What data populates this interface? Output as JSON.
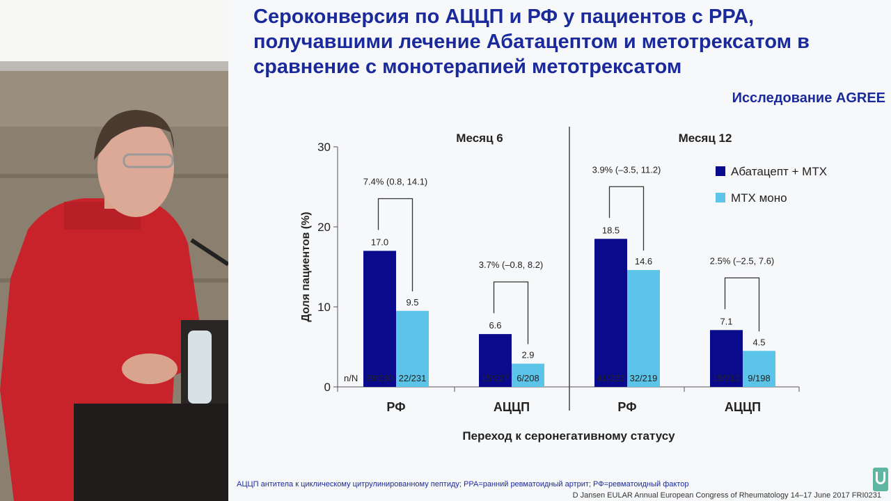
{
  "slide": {
    "title": "Сероконверсия по АЦЦП и РФ у пациентов с РРА, получавшими лечение Абатацептом и метотрексатом в сравнение с монотерапией метотрексатом",
    "study_label": "Исследование AGREE",
    "footnote": "АЦЦП антитела к циклическому цитрулинированному  пептиду; РРА=ранний  ревматоидный артрит; РФ=ревматоидный  фактор",
    "citation": "D Jansen  EULAR Annual European Congress of Rheumatology 14–17 June 2017 FRI0231"
  },
  "colors": {
    "title": "#1a2a9a",
    "series_abatacept": "#0a0a8c",
    "series_mtx": "#5bc4e8"
  },
  "icons": {
    "logo": "eular-logo-icon"
  },
  "chart_data": {
    "type": "bar",
    "ylabel": "Доля пациентов (%)",
    "xlabel": "Переход к серонегативному статусу",
    "ylim": [
      0,
      30
    ],
    "yticks": [
      0,
      10,
      20,
      30
    ],
    "legend_position": "top-right",
    "grid": false,
    "nn_prefix": "n/N",
    "series": [
      {
        "name": "Абатацепт + МТХ",
        "color": "#0a0a8c"
      },
      {
        "name": "МТХ моно",
        "color": "#5bc4e8"
      }
    ],
    "panels": [
      {
        "title": "Месяц 6",
        "groups": [
          {
            "category": "РФ",
            "values": [
              17.0,
              9.5
            ],
            "labels": [
              "17.0",
              "9.5"
            ],
            "nn": [
              "39/230",
              "22/231"
            ],
            "diff": "7.4% (0.8, 14.1)"
          },
          {
            "category": "АЦЦП",
            "values": [
              6.6,
              2.9
            ],
            "labels": [
              "6.6",
              "2.9"
            ],
            "nn": [
              "15/227",
              "6/208"
            ],
            "diff": "3.7% (–0.8, 8.2)"
          }
        ]
      },
      {
        "title": "Месяц 12",
        "groups": [
          {
            "category": "РФ",
            "values": [
              18.5,
              14.6
            ],
            "labels": [
              "18.5",
              "14.6"
            ],
            "nn": [
              "41/222",
              "32/219"
            ],
            "diff": "3.9% (–3.5, 11.2)"
          },
          {
            "category": "АЦЦП",
            "values": [
              7.1,
              4.5
            ],
            "labels": [
              "7.1",
              "4.5"
            ],
            "nn": [
              "15/212",
              "9/198"
            ],
            "diff": "2.5% (–2.5, 7.6)"
          }
        ]
      }
    ]
  }
}
